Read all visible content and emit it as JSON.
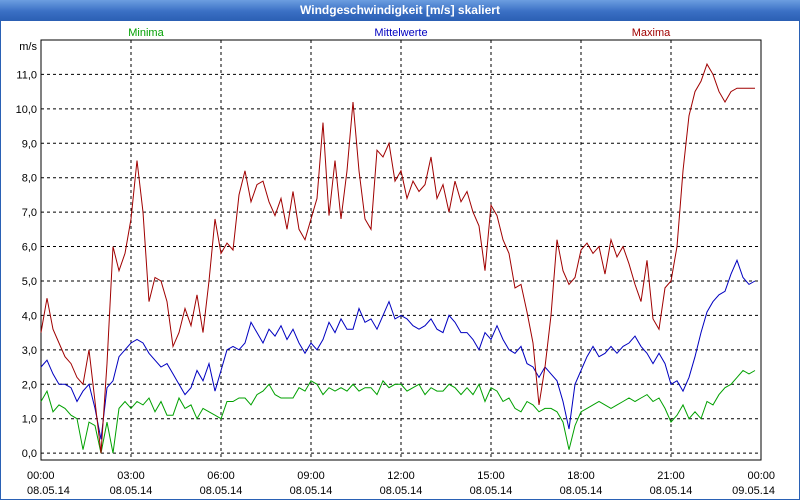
{
  "chart_data": {
    "type": "line",
    "title": "Windgeschwindigkeit [m/s] skaliert",
    "ylabel": "m/s",
    "xlabel": "",
    "ylim": [
      -0.2,
      12.0
    ],
    "xlim": [
      0,
      24
    ],
    "grid": true,
    "x_ticks": [
      {
        "x": 0,
        "time": "00:00",
        "date": "08.05.14"
      },
      {
        "x": 3,
        "time": "03:00",
        "date": "08.05.14"
      },
      {
        "x": 6,
        "time": "06:00",
        "date": "08.05.14"
      },
      {
        "x": 9,
        "time": "09:00",
        "date": "08.05.14"
      },
      {
        "x": 12,
        "time": "12:00",
        "date": "08.05.14"
      },
      {
        "x": 15,
        "time": "15:00",
        "date": "08.05.14"
      },
      {
        "x": 18,
        "time": "18:00",
        "date": "08.05.14"
      },
      {
        "x": 21,
        "time": "21:00",
        "date": "08.05.14"
      },
      {
        "x": 24,
        "time": "00:00",
        "date": "09.05.14"
      }
    ],
    "y_ticks": [
      "0,0",
      "1,0",
      "2,0",
      "3,0",
      "4,0",
      "5,0",
      "6,0",
      "7,0",
      "8,0",
      "9,0",
      "10,0",
      "11,0"
    ],
    "y_tick_values": [
      0,
      1,
      2,
      3,
      4,
      5,
      6,
      7,
      8,
      9,
      10,
      11
    ],
    "series": [
      {
        "name": "Minima",
        "color": "#00a000",
        "x": [
          0,
          0.2,
          0.4,
          0.6,
          0.8,
          1.0,
          1.2,
          1.4,
          1.6,
          1.8,
          2.0,
          2.2,
          2.4,
          2.6,
          2.8,
          3.0,
          3.2,
          3.4,
          3.6,
          3.8,
          4.0,
          4.2,
          4.4,
          4.6,
          4.8,
          5.0,
          5.2,
          5.4,
          5.6,
          5.8,
          6.0,
          6.2,
          6.4,
          6.6,
          6.8,
          7.0,
          7.2,
          7.4,
          7.6,
          7.8,
          8.0,
          8.2,
          8.4,
          8.6,
          8.8,
          9.0,
          9.2,
          9.4,
          9.6,
          9.8,
          10.0,
          10.2,
          10.4,
          10.6,
          10.8,
          11.0,
          11.2,
          11.4,
          11.6,
          11.8,
          12.0,
          12.2,
          12.4,
          12.6,
          12.8,
          13.0,
          13.2,
          13.4,
          13.6,
          13.8,
          14.0,
          14.2,
          14.4,
          14.6,
          14.8,
          15.0,
          15.2,
          15.4,
          15.6,
          15.8,
          16.0,
          16.2,
          16.4,
          16.6,
          16.8,
          17.0,
          17.2,
          17.4,
          17.6,
          17.8,
          18.0,
          18.2,
          18.4,
          18.6,
          18.8,
          19.0,
          19.2,
          19.4,
          19.6,
          19.8,
          20.0,
          20.2,
          20.4,
          20.6,
          20.8,
          21.0,
          21.2,
          21.4,
          21.6,
          21.8,
          22.0,
          22.2,
          22.4,
          22.6,
          22.8,
          23.0,
          23.2,
          23.4,
          23.6,
          23.8
        ],
        "y": [
          1.5,
          1.8,
          1.2,
          1.4,
          1.3,
          1.1,
          1.0,
          0.1,
          0.9,
          0.8,
          0.0,
          0.9,
          0.0,
          1.3,
          1.5,
          1.3,
          1.5,
          1.4,
          1.6,
          1.2,
          1.5,
          1.1,
          1.1,
          1.6,
          1.3,
          1.4,
          1.0,
          1.3,
          1.2,
          1.1,
          1.0,
          1.5,
          1.5,
          1.6,
          1.6,
          1.4,
          1.7,
          1.8,
          2.0,
          1.7,
          1.6,
          1.6,
          1.6,
          1.9,
          1.8,
          2.1,
          2.0,
          1.7,
          1.9,
          1.8,
          1.9,
          1.8,
          2.0,
          1.8,
          1.9,
          1.9,
          1.7,
          2.1,
          1.9,
          2.0,
          2.0,
          1.8,
          1.9,
          2.0,
          1.7,
          1.9,
          1.8,
          1.8,
          2.0,
          1.9,
          1.7,
          1.9,
          1.7,
          2.0,
          1.5,
          1.9,
          1.8,
          1.5,
          1.6,
          1.3,
          1.2,
          1.5,
          1.4,
          1.2,
          1.3,
          1.3,
          1.2,
          0.9,
          0.1,
          0.8,
          1.2,
          1.3,
          1.4,
          1.5,
          1.4,
          1.3,
          1.4,
          1.5,
          1.6,
          1.5,
          1.6,
          1.7,
          1.5,
          1.6,
          1.3,
          0.9,
          1.1,
          1.4,
          1.0,
          1.2,
          1.0,
          1.5,
          1.4,
          1.7,
          1.9,
          2.0,
          2.2,
          2.4,
          2.3,
          2.4
        ]
      },
      {
        "name": "Mittelwerte",
        "color": "#0000c0",
        "x": [
          0,
          0.2,
          0.4,
          0.6,
          0.8,
          1.0,
          1.2,
          1.4,
          1.6,
          1.8,
          2.0,
          2.2,
          2.4,
          2.6,
          2.8,
          3.0,
          3.2,
          3.4,
          3.6,
          3.8,
          4.0,
          4.2,
          4.4,
          4.6,
          4.8,
          5.0,
          5.2,
          5.4,
          5.6,
          5.8,
          6.0,
          6.2,
          6.4,
          6.6,
          6.8,
          7.0,
          7.2,
          7.4,
          7.6,
          7.8,
          8.0,
          8.2,
          8.4,
          8.6,
          8.8,
          9.0,
          9.2,
          9.4,
          9.6,
          9.8,
          10.0,
          10.2,
          10.4,
          10.6,
          10.8,
          11.0,
          11.2,
          11.4,
          11.6,
          11.8,
          12.0,
          12.2,
          12.4,
          12.6,
          12.8,
          13.0,
          13.2,
          13.4,
          13.6,
          13.8,
          14.0,
          14.2,
          14.4,
          14.6,
          14.8,
          15.0,
          15.2,
          15.4,
          15.6,
          15.8,
          16.0,
          16.2,
          16.4,
          16.6,
          16.8,
          17.0,
          17.2,
          17.4,
          17.6,
          17.8,
          18.0,
          18.2,
          18.4,
          18.6,
          18.8,
          19.0,
          19.2,
          19.4,
          19.6,
          19.8,
          20.0,
          20.2,
          20.4,
          20.6,
          20.8,
          21.0,
          21.2,
          21.4,
          21.6,
          21.8,
          22.0,
          22.2,
          22.4,
          22.6,
          22.8,
          23.0,
          23.2,
          23.4,
          23.6,
          23.8
        ],
        "y": [
          2.5,
          2.7,
          2.3,
          2.0,
          2.0,
          1.9,
          1.5,
          1.8,
          2.0,
          1.3,
          0.4,
          1.9,
          2.1,
          2.8,
          3.0,
          3.2,
          3.3,
          3.2,
          2.9,
          2.7,
          2.5,
          2.6,
          2.3,
          2.0,
          1.7,
          1.9,
          2.4,
          2.1,
          2.6,
          1.8,
          2.4,
          3.0,
          3.1,
          3.0,
          3.2,
          3.8,
          3.5,
          3.2,
          3.6,
          3.4,
          3.7,
          3.3,
          3.6,
          3.2,
          2.9,
          3.2,
          3.0,
          3.3,
          3.8,
          3.5,
          3.9,
          3.6,
          3.6,
          4.2,
          3.8,
          3.9,
          3.6,
          4.0,
          4.4,
          3.9,
          4.0,
          3.9,
          3.7,
          3.6,
          3.7,
          3.9,
          3.6,
          3.5,
          4.0,
          3.8,
          3.5,
          3.5,
          3.3,
          3.0,
          3.5,
          3.3,
          3.7,
          3.3,
          3.0,
          2.9,
          3.1,
          2.6,
          2.5,
          2.2,
          2.5,
          2.3,
          2.1,
          1.5,
          0.7,
          2.0,
          2.4,
          2.8,
          3.1,
          2.8,
          2.9,
          3.1,
          2.9,
          3.1,
          3.2,
          3.4,
          3.1,
          2.9,
          2.6,
          2.9,
          2.6,
          2.0,
          2.1,
          1.8,
          2.2,
          2.8,
          3.5,
          4.1,
          4.4,
          4.6,
          4.7,
          5.2,
          5.6,
          5.1,
          4.9,
          5.0
        ]
      },
      {
        "name": "Maxima",
        "color": "#a00000",
        "x": [
          0,
          0.2,
          0.4,
          0.6,
          0.8,
          1.0,
          1.2,
          1.4,
          1.6,
          1.8,
          2.0,
          2.2,
          2.4,
          2.6,
          2.8,
          3.0,
          3.2,
          3.4,
          3.6,
          3.8,
          4.0,
          4.2,
          4.4,
          4.6,
          4.8,
          5.0,
          5.2,
          5.4,
          5.6,
          5.8,
          6.0,
          6.2,
          6.4,
          6.6,
          6.8,
          7.0,
          7.2,
          7.4,
          7.6,
          7.8,
          8.0,
          8.2,
          8.4,
          8.6,
          8.8,
          9.0,
          9.2,
          9.4,
          9.6,
          9.8,
          10.0,
          10.2,
          10.4,
          10.6,
          10.8,
          11.0,
          11.2,
          11.4,
          11.6,
          11.8,
          12.0,
          12.2,
          12.4,
          12.6,
          12.8,
          13.0,
          13.2,
          13.4,
          13.6,
          13.8,
          14.0,
          14.2,
          14.4,
          14.6,
          14.8,
          15.0,
          15.2,
          15.4,
          15.6,
          15.8,
          16.0,
          16.2,
          16.4,
          16.6,
          16.8,
          17.0,
          17.2,
          17.4,
          17.6,
          17.8,
          18.0,
          18.2,
          18.4,
          18.6,
          18.8,
          19.0,
          19.2,
          19.4,
          19.6,
          19.8,
          20.0,
          20.2,
          20.4,
          20.6,
          20.8,
          21.0,
          21.2,
          21.4,
          21.6,
          21.8,
          22.0,
          22.2,
          22.4,
          22.6,
          22.8,
          23.0,
          23.2,
          23.4,
          23.6,
          23.8
        ],
        "y": [
          3.5,
          4.5,
          3.6,
          3.2,
          2.8,
          2.6,
          2.2,
          2.0,
          3.0,
          1.5,
          0.0,
          2.6,
          6.0,
          5.3,
          5.8,
          6.8,
          8.5,
          7.0,
          4.4,
          5.1,
          5.0,
          4.4,
          3.1,
          3.5,
          4.2,
          3.7,
          4.6,
          3.5,
          5.0,
          6.8,
          5.8,
          6.1,
          5.9,
          7.5,
          8.2,
          7.3,
          7.8,
          7.9,
          7.3,
          6.9,
          7.4,
          6.5,
          7.6,
          6.5,
          6.2,
          6.8,
          7.4,
          9.6,
          6.9,
          8.5,
          6.8,
          8.2,
          10.2,
          8.2,
          6.8,
          6.5,
          8.8,
          8.6,
          9.0,
          7.9,
          8.2,
          7.4,
          7.9,
          7.6,
          7.8,
          8.6,
          7.4,
          7.8,
          7.0,
          7.9,
          7.3,
          7.6,
          7.0,
          6.6,
          5.3,
          7.2,
          6.9,
          6.2,
          5.8,
          4.8,
          4.9,
          4.1,
          3.2,
          1.4,
          2.5,
          4.0,
          6.2,
          5.3,
          4.9,
          5.1,
          5.9,
          6.1,
          5.8,
          6.0,
          5.2,
          6.2,
          5.7,
          6.0,
          5.5,
          4.9,
          4.4,
          5.6,
          3.9,
          3.6,
          4.8,
          5.0,
          6.0,
          8.2,
          9.8,
          10.5,
          10.8,
          11.3,
          11.0,
          10.5,
          10.2,
          10.5,
          10.6,
          10.6,
          10.6,
          10.6
        ]
      }
    ]
  }
}
